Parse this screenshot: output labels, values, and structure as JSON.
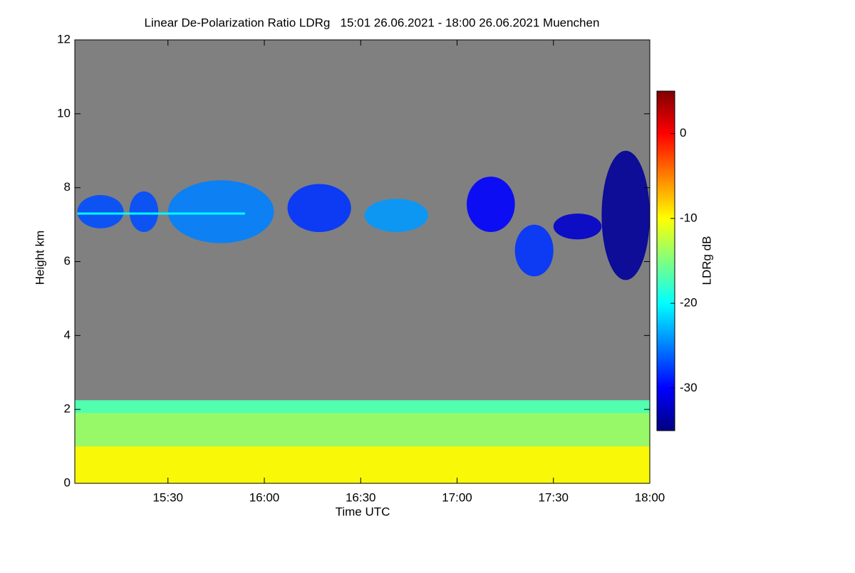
{
  "chart_data": {
    "type": "heatmap",
    "title": "Linear De-Polarization Ratio LDRg   15:01 26.06.2021 - 18:00 26.06.2021 Muenchen",
    "x_label": "Time UTC",
    "y_label": "Height km",
    "colorbar_label": "LDRg dB",
    "xlim": [
      15.0167,
      18.0
    ],
    "xticks": [
      {
        "value": 15.5,
        "label": "15:30"
      },
      {
        "value": 16.0,
        "label": "16:00"
      },
      {
        "value": 16.5,
        "label": "16:30"
      },
      {
        "value": 17.0,
        "label": "17:00"
      },
      {
        "value": 17.5,
        "label": "17:30"
      },
      {
        "value": 18.0,
        "label": "18:00"
      }
    ],
    "ylim": [
      0,
      12
    ],
    "yticks": [
      0,
      2,
      4,
      6,
      8,
      10,
      12
    ],
    "clim": [
      -35,
      5
    ],
    "cticks": [
      0,
      -10,
      -20,
      -30
    ],
    "colormap": "jet",
    "background": "#808080",
    "regions": [
      {
        "x": [
          15.0167,
          18.0
        ],
        "y": [
          1.0,
          2.2
        ],
        "value": -14
      },
      {
        "x": [
          15.0167,
          18.0
        ],
        "y": [
          0.0,
          1.0
        ],
        "value": -10
      },
      {
        "x": [
          15.0167,
          18.0
        ],
        "y": [
          1.9,
          2.25
        ],
        "value": -17
      },
      {
        "x": [
          15.03,
          15.27
        ],
        "y": [
          6.9,
          7.8
        ],
        "value": -27
      },
      {
        "x": [
          15.3,
          15.45
        ],
        "y": [
          6.8,
          7.9
        ],
        "value": -27
      },
      {
        "x": [
          15.5,
          16.05
        ],
        "y": [
          6.5,
          8.2
        ],
        "value": -25
      },
      {
        "x": [
          16.12,
          16.45
        ],
        "y": [
          6.8,
          8.1
        ],
        "value": -28
      },
      {
        "x": [
          16.52,
          16.85
        ],
        "y": [
          6.8,
          7.7
        ],
        "value": -24
      },
      {
        "x": [
          17.05,
          17.3
        ],
        "y": [
          6.8,
          8.3
        ],
        "value": -30
      },
      {
        "x": [
          17.3,
          17.5
        ],
        "y": [
          5.6,
          7.0
        ],
        "value": -28
      },
      {
        "x": [
          17.5,
          17.75
        ],
        "y": [
          6.6,
          7.3
        ],
        "value": -32
      },
      {
        "x": [
          17.75,
          18.0
        ],
        "y": [
          5.5,
          9.0
        ],
        "value": -34
      },
      {
        "x": [
          15.03,
          15.9
        ],
        "y": [
          7.27,
          7.33
        ],
        "value": -20
      }
    ]
  }
}
